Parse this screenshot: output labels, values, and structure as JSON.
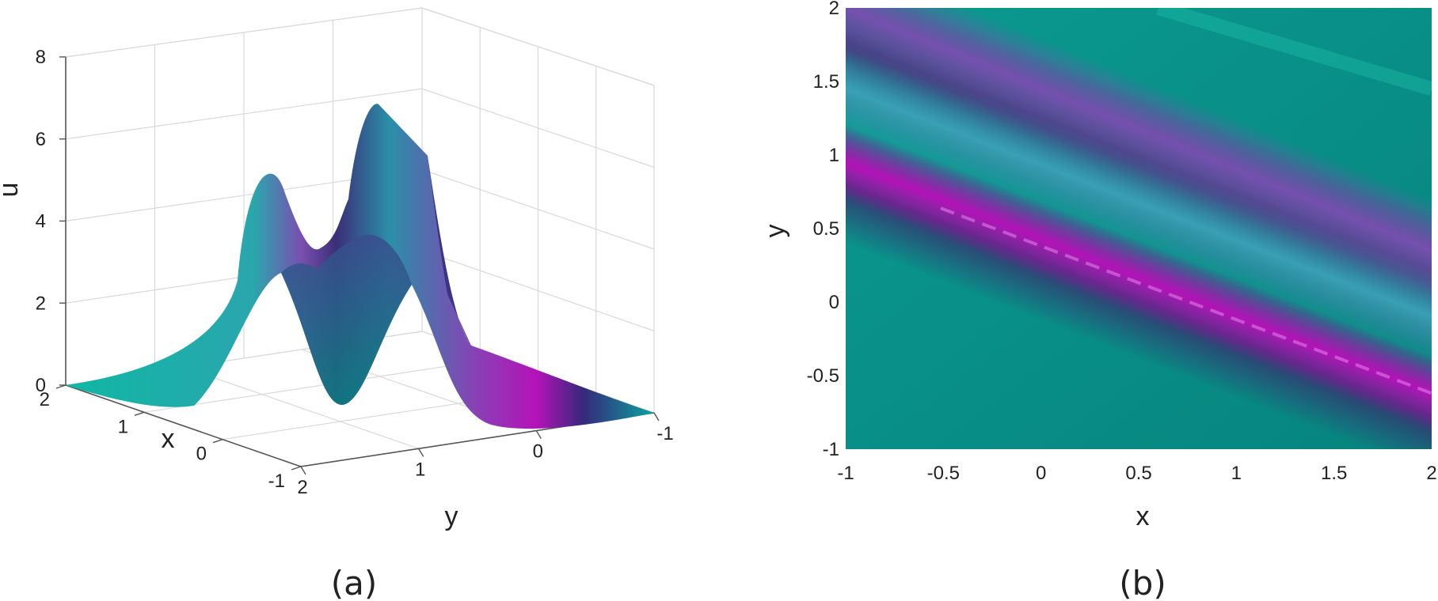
{
  "chart_data": [
    {
      "panel": "a",
      "type": "surface",
      "caption": "(a)",
      "xlabel": "x",
      "ylabel": "y",
      "zlabel": "u",
      "xlim": [
        -1,
        2
      ],
      "ylim": [
        -1,
        2
      ],
      "zlim": [
        0,
        8
      ],
      "xticks": [
        "2",
        "1",
        "0",
        "-1"
      ],
      "yticks": [
        "2",
        "1",
        "0",
        "-1"
      ],
      "zticks": [
        "0",
        "2",
        "4",
        "6",
        "8"
      ],
      "grid": true,
      "peaks": [
        {
          "label": "left peak",
          "u": 5.6
        },
        {
          "label": "right peak",
          "u": 7.0
        }
      ],
      "saddle_u": 3.5,
      "colors": {
        "low": "#0fb7a5",
        "mid": "#2f4f8a",
        "high": "#b313b8"
      }
    },
    {
      "panel": "b",
      "type": "heatmap",
      "caption": "(b)",
      "xlabel": "x",
      "ylabel": "y",
      "xlim": [
        -1,
        2
      ],
      "ylim": [
        -1,
        2
      ],
      "xticks": [
        "-1",
        "-0.5",
        "0",
        "0.5",
        "1",
        "1.5",
        "2"
      ],
      "yticks": [
        "-1",
        "-0.5",
        "0",
        "0.5",
        "1",
        "1.5",
        "2"
      ],
      "bands": [
        {
          "label": "main ridge",
          "from": [
            -1,
            0.95
          ],
          "to": [
            2,
            -0.62
          ],
          "color": "#b313b8"
        },
        {
          "label": "secondary band",
          "from": [
            -1,
            1.45
          ],
          "to": [
            2,
            -0.1
          ],
          "color": "#3aa3b8"
        },
        {
          "label": "upper band",
          "from": [
            -1,
            2.0
          ],
          "to": [
            2,
            0.35
          ],
          "color": "#7a4fb0"
        }
      ],
      "colors": {
        "background": "#08847f",
        "high": "#b313b8"
      }
    }
  ]
}
